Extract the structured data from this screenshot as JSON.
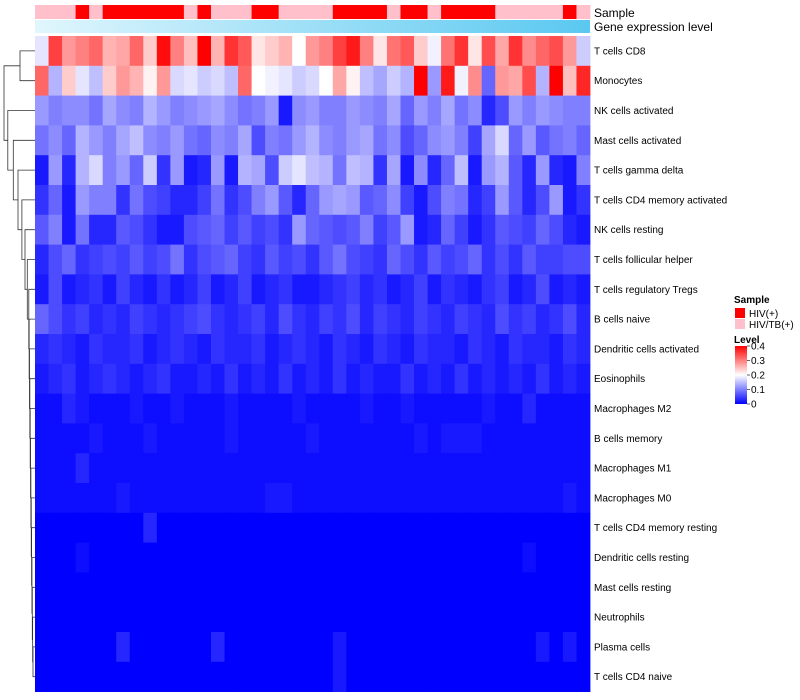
{
  "chart_data": {
    "type": "heatmap",
    "annotation_tracks": [
      "Sample",
      "Gene expression level"
    ],
    "sample_legend": {
      "title": "Sample",
      "entries": [
        {
          "label": "HIV(+)",
          "color": "#ff0000"
        },
        {
          "label": "HIV/TB(+)",
          "color": "#ffc0cb"
        }
      ]
    },
    "level_legend": {
      "title": "Level",
      "ticks": [
        "0.4",
        "0.3",
        "0.2",
        "0.1",
        "0"
      ],
      "tick_values": [
        0.4,
        0.3,
        0.2,
        0.1,
        0
      ],
      "range": [
        0,
        0.4
      ],
      "colors": {
        "low": "#0000ff",
        "mid": "#ffffff",
        "high": "#ff0000"
      }
    },
    "gradient_colors": {
      "start": "#e0f6fd",
      "end": "#5ac8f0"
    },
    "sample_groups": [
      2,
      2,
      2,
      1,
      2,
      1,
      1,
      1,
      1,
      1,
      1,
      2,
      1,
      2,
      2,
      2,
      1,
      1,
      2,
      2,
      2,
      2,
      1,
      1,
      1,
      1,
      2,
      1,
      1,
      2,
      1,
      1,
      1,
      1,
      2,
      2,
      2,
      2,
      2,
      1,
      2
    ],
    "rows": [
      {
        "label": "T cells CD8",
        "values": [
          0.18,
          0.35,
          0.28,
          0.3,
          0.32,
          0.26,
          0.27,
          0.32,
          0.24,
          0.39,
          0.3,
          0.25,
          0.4,
          0.26,
          0.36,
          0.33,
          0.22,
          0.24,
          0.26,
          0.2,
          0.28,
          0.3,
          0.35,
          0.38,
          0.3,
          0.22,
          0.31,
          0.33,
          0.24,
          0.19,
          0.31,
          0.36,
          0.22,
          0.34,
          0.27,
          0.36,
          0.29,
          0.32,
          0.34,
          0.28,
          0.16
        ]
      },
      {
        "label": "Monocytes",
        "values": [
          0.32,
          0.14,
          0.24,
          0.18,
          0.15,
          0.24,
          0.28,
          0.26,
          0.21,
          0.28,
          0.17,
          0.18,
          0.16,
          0.17,
          0.15,
          0.32,
          0.2,
          0.19,
          0.18,
          0.16,
          0.17,
          0.2,
          0.27,
          0.21,
          0.15,
          0.13,
          0.16,
          0.14,
          0.4,
          0.12,
          0.38,
          0.19,
          0.29,
          0.08,
          0.28,
          0.27,
          0.34,
          0.14,
          0.4,
          0.25,
          0.37
        ]
      },
      {
        "label": "NK cells activated",
        "values": [
          0.12,
          0.1,
          0.11,
          0.11,
          0.09,
          0.13,
          0.11,
          0.1,
          0.14,
          0.12,
          0.1,
          0.11,
          0.12,
          0.13,
          0.11,
          0.09,
          0.1,
          0.12,
          0.02,
          0.11,
          0.12,
          0.1,
          0.1,
          0.12,
          0.11,
          0.1,
          0.13,
          0.08,
          0.12,
          0.1,
          0.13,
          0.09,
          0.11,
          0.03,
          0.06,
          0.12,
          0.1,
          0.12,
          0.11,
          0.1,
          0.1
        ]
      },
      {
        "label": "Mast cells activated",
        "values": [
          0.09,
          0.11,
          0.08,
          0.14,
          0.12,
          0.1,
          0.13,
          0.15,
          0.11,
          0.1,
          0.12,
          0.09,
          0.08,
          0.11,
          0.1,
          0.13,
          0.06,
          0.1,
          0.09,
          0.12,
          0.14,
          0.11,
          0.1,
          0.12,
          0.13,
          0.09,
          0.11,
          0.06,
          0.08,
          0.11,
          0.12,
          0.1,
          0.05,
          0.13,
          0.17,
          0.08,
          0.12,
          0.07,
          0.09,
          0.1,
          0.08
        ]
      },
      {
        "label": "T cells gamma delta",
        "values": [
          0.02,
          0.12,
          0.03,
          0.14,
          0.17,
          0.1,
          0.12,
          0.08,
          0.16,
          0.04,
          0.12,
          0.02,
          0.03,
          0.12,
          0.02,
          0.14,
          0.13,
          0.06,
          0.16,
          0.18,
          0.15,
          0.14,
          0.09,
          0.15,
          0.14,
          0.04,
          0.13,
          0.02,
          0.11,
          0.03,
          0.08,
          0.15,
          0.02,
          0.12,
          0.14,
          0.07,
          0.03,
          0.12,
          0.03,
          0.02,
          0.1
        ]
      },
      {
        "label": "T cells CD4 memory activated",
        "values": [
          0.04,
          0.08,
          0.02,
          0.12,
          0.1,
          0.1,
          0.04,
          0.09,
          0.06,
          0.05,
          0.03,
          0.03,
          0.05,
          0.09,
          0.04,
          0.06,
          0.1,
          0.12,
          0.07,
          0.03,
          0.08,
          0.12,
          0.13,
          0.12,
          0.07,
          0.08,
          0.11,
          0.05,
          0.02,
          0.06,
          0.1,
          0.09,
          0.03,
          0.05,
          0.12,
          0.07,
          0.03,
          0.06,
          0.12,
          0.02,
          0.04
        ]
      },
      {
        "label": "NK cells resting",
        "values": [
          0.07,
          0.1,
          0.02,
          0.09,
          0.03,
          0.03,
          0.07,
          0.06,
          0.04,
          0.02,
          0.02,
          0.06,
          0.07,
          0.08,
          0.05,
          0.07,
          0.05,
          0.06,
          0.04,
          0.12,
          0.08,
          0.07,
          0.06,
          0.07,
          0.1,
          0.05,
          0.07,
          0.12,
          0.02,
          0.03,
          0.08,
          0.05,
          0.02,
          0.04,
          0.07,
          0.06,
          0.05,
          0.08,
          0.06,
          0.03,
          0.02
        ]
      },
      {
        "label": "T cells follicular helper",
        "values": [
          0.03,
          0.06,
          0.08,
          0.04,
          0.05,
          0.06,
          0.05,
          0.07,
          0.05,
          0.06,
          0.09,
          0.04,
          0.06,
          0.07,
          0.08,
          0.05,
          0.04,
          0.07,
          0.05,
          0.06,
          0.04,
          0.07,
          0.09,
          0.06,
          0.05,
          0.04,
          0.08,
          0.06,
          0.04,
          0.07,
          0.05,
          0.06,
          0.08,
          0.04,
          0.06,
          0.04,
          0.07,
          0.05,
          0.05,
          0.06,
          0.06
        ]
      },
      {
        "label": "T cells regulatory  Tregs",
        "values": [
          0.02,
          0.06,
          0.02,
          0.03,
          0.04,
          0.02,
          0.05,
          0.03,
          0.02,
          0.04,
          0.02,
          0.03,
          0.05,
          0.02,
          0.03,
          0.05,
          0.02,
          0.03,
          0.04,
          0.02,
          0.02,
          0.03,
          0.04,
          0.05,
          0.03,
          0.04,
          0.02,
          0.03,
          0.05,
          0.02,
          0.04,
          0.03,
          0.02,
          0.04,
          0.05,
          0.02,
          0.03,
          0.06,
          0.02,
          0.03,
          0.02
        ]
      },
      {
        "label": "B cells naive",
        "values": [
          0.08,
          0.06,
          0.04,
          0.05,
          0.03,
          0.04,
          0.03,
          0.05,
          0.04,
          0.03,
          0.04,
          0.05,
          0.06,
          0.04,
          0.03,
          0.04,
          0.05,
          0.03,
          0.06,
          0.04,
          0.03,
          0.05,
          0.04,
          0.06,
          0.03,
          0.05,
          0.04,
          0.03,
          0.05,
          0.04,
          0.03,
          0.05,
          0.04,
          0.03,
          0.06,
          0.04,
          0.05,
          0.03,
          0.04,
          0.06,
          0.03
        ]
      },
      {
        "label": "Dendritic cells activated",
        "values": [
          0.03,
          0.04,
          0.03,
          0.02,
          0.04,
          0.03,
          0.03,
          0.04,
          0.02,
          0.03,
          0.04,
          0.03,
          0.02,
          0.04,
          0.03,
          0.03,
          0.04,
          0.02,
          0.03,
          0.04,
          0.03,
          0.02,
          0.04,
          0.03,
          0.02,
          0.04,
          0.03,
          0.02,
          0.04,
          0.03,
          0.03,
          0.02,
          0.04,
          0.03,
          0.02,
          0.04,
          0.03,
          0.03,
          0.02,
          0.04,
          0.03
        ]
      },
      {
        "label": "Eosinophils",
        "values": [
          0.02,
          0.03,
          0.04,
          0.02,
          0.03,
          0.04,
          0.03,
          0.02,
          0.03,
          0.04,
          0.02,
          0.02,
          0.03,
          0.02,
          0.04,
          0.02,
          0.03,
          0.02,
          0.04,
          0.02,
          0.03,
          0.02,
          0.04,
          0.02,
          0.03,
          0.02,
          0.02,
          0.04,
          0.02,
          0.03,
          0.02,
          0.04,
          0.02,
          0.03,
          0.02,
          0.03,
          0.02,
          0.04,
          0.02,
          0.03,
          0.02
        ]
      },
      {
        "label": "Macrophages M2",
        "values": [
          0.01,
          0.01,
          0.03,
          0.02,
          0.01,
          0.01,
          0.01,
          0.02,
          0.01,
          0.01,
          0.02,
          0.01,
          0.01,
          0.01,
          0.02,
          0.01,
          0.01,
          0.01,
          0.01,
          0.02,
          0.01,
          0.01,
          0.01,
          0.01,
          0.02,
          0.01,
          0.01,
          0.02,
          0.01,
          0.01,
          0.01,
          0.01,
          0.01,
          0.02,
          0.01,
          0.01,
          0.03,
          0.01,
          0.01,
          0.01,
          0.01
        ]
      },
      {
        "label": "B cells memory",
        "values": [
          0.01,
          0.01,
          0.01,
          0.01,
          0.02,
          0.01,
          0.01,
          0.01,
          0.02,
          0.01,
          0.01,
          0.01,
          0.01,
          0.01,
          0.02,
          0.01,
          0.01,
          0.01,
          0.01,
          0.01,
          0.02,
          0.01,
          0.01,
          0.01,
          0.01,
          0.01,
          0.01,
          0.01,
          0.02,
          0.01,
          0.02,
          0.02,
          0.02,
          0.01,
          0.01,
          0.01,
          0.01,
          0.01,
          0.01,
          0.01,
          0.01
        ]
      },
      {
        "label": "Macrophages M1",
        "values": [
          0.01,
          0.01,
          0.01,
          0.03,
          0.01,
          0.01,
          0.01,
          0.01,
          0.01,
          0.01,
          0.01,
          0.01,
          0.01,
          0.01,
          0.01,
          0.01,
          0.01,
          0.01,
          0.01,
          0.01,
          0.01,
          0.01,
          0.01,
          0.01,
          0.01,
          0.01,
          0.01,
          0.01,
          0.01,
          0.01,
          0.01,
          0.01,
          0.01,
          0.01,
          0.01,
          0.01,
          0.01,
          0.01,
          0.01,
          0.01,
          0.01
        ]
      },
      {
        "label": "Macrophages M0",
        "values": [
          0.01,
          0.01,
          0.01,
          0.01,
          0.01,
          0.01,
          0.02,
          0.01,
          0.01,
          0.01,
          0.01,
          0.01,
          0.01,
          0.01,
          0.01,
          0.01,
          0.01,
          0.02,
          0.02,
          0.01,
          0.01,
          0.01,
          0.01,
          0.01,
          0.01,
          0.01,
          0.01,
          0.01,
          0.01,
          0.01,
          0.01,
          0.01,
          0.01,
          0.01,
          0.01,
          0.01,
          0.01,
          0.01,
          0.01,
          0.02,
          0.01
        ]
      },
      {
        "label": "T cells CD4 memory resting",
        "values": [
          0.0,
          0.0,
          0.0,
          0.0,
          0.0,
          0.0,
          0.0,
          0.0,
          0.03,
          0.0,
          0.0,
          0.0,
          0.0,
          0.0,
          0.0,
          0.0,
          0.0,
          0.0,
          0.0,
          0.0,
          0.0,
          0.0,
          0.0,
          0.0,
          0.0,
          0.0,
          0.0,
          0.0,
          0.0,
          0.0,
          0.0,
          0.0,
          0.0,
          0.0,
          0.0,
          0.0,
          0.0,
          0.0,
          0.0,
          0.0,
          0.0
        ]
      },
      {
        "label": "Dendritic cells resting",
        "values": [
          0.0,
          0.0,
          0.0,
          0.01,
          0.0,
          0.0,
          0.0,
          0.0,
          0.0,
          0.0,
          0.0,
          0.0,
          0.0,
          0.0,
          0.0,
          0.0,
          0.0,
          0.0,
          0.0,
          0.0,
          0.0,
          0.0,
          0.0,
          0.0,
          0.0,
          0.0,
          0.0,
          0.0,
          0.0,
          0.0,
          0.0,
          0.0,
          0.0,
          0.0,
          0.0,
          0.0,
          0.01,
          0.0,
          0.0,
          0.0,
          0.0
        ]
      },
      {
        "label": "Mast cells resting",
        "values": [
          0.0,
          0.0,
          0.0,
          0.0,
          0.0,
          0.0,
          0.0,
          0.0,
          0.0,
          0.0,
          0.0,
          0.0,
          0.0,
          0.0,
          0.0,
          0.0,
          0.0,
          0.0,
          0.0,
          0.0,
          0.0,
          0.0,
          0.0,
          0.0,
          0.0,
          0.0,
          0.0,
          0.0,
          0.0,
          0.0,
          0.0,
          0.0,
          0.0,
          0.0,
          0.0,
          0.0,
          0.0,
          0.0,
          0.0,
          0.0,
          0.0
        ]
      },
      {
        "label": "Neutrophils",
        "values": [
          0.0,
          0.0,
          0.0,
          0.0,
          0.0,
          0.0,
          0.0,
          0.0,
          0.0,
          0.0,
          0.0,
          0.0,
          0.0,
          0.0,
          0.0,
          0.0,
          0.0,
          0.0,
          0.0,
          0.0,
          0.0,
          0.0,
          0.0,
          0.0,
          0.0,
          0.0,
          0.0,
          0.0,
          0.0,
          0.0,
          0.0,
          0.0,
          0.0,
          0.0,
          0.0,
          0.0,
          0.0,
          0.0,
          0.0,
          0.0,
          0.0
        ]
      },
      {
        "label": "Plasma cells",
        "values": [
          0.0,
          0.0,
          0.0,
          0.0,
          0.0,
          0.0,
          0.03,
          0.0,
          0.0,
          0.0,
          0.0,
          0.0,
          0.0,
          0.03,
          0.0,
          0.0,
          0.0,
          0.0,
          0.0,
          0.0,
          0.0,
          0.0,
          0.02,
          0.0,
          0.0,
          0.0,
          0.0,
          0.0,
          0.0,
          0.0,
          0.0,
          0.0,
          0.0,
          0.0,
          0.0,
          0.0,
          0.0,
          0.02,
          0.0,
          0.02,
          0.0
        ]
      },
      {
        "label": "T cells CD4 naive",
        "values": [
          0.0,
          0.0,
          0.0,
          0.0,
          0.0,
          0.0,
          0.0,
          0.0,
          0.0,
          0.0,
          0.0,
          0.0,
          0.0,
          0.0,
          0.0,
          0.0,
          0.0,
          0.0,
          0.0,
          0.0,
          0.0,
          0.0,
          0.02,
          0.0,
          0.0,
          0.0,
          0.0,
          0.0,
          0.0,
          0.0,
          0.0,
          0.0,
          0.0,
          0.0,
          0.0,
          0.0,
          0.0,
          0.0,
          0.0,
          0.0,
          0.0
        ]
      }
    ]
  }
}
